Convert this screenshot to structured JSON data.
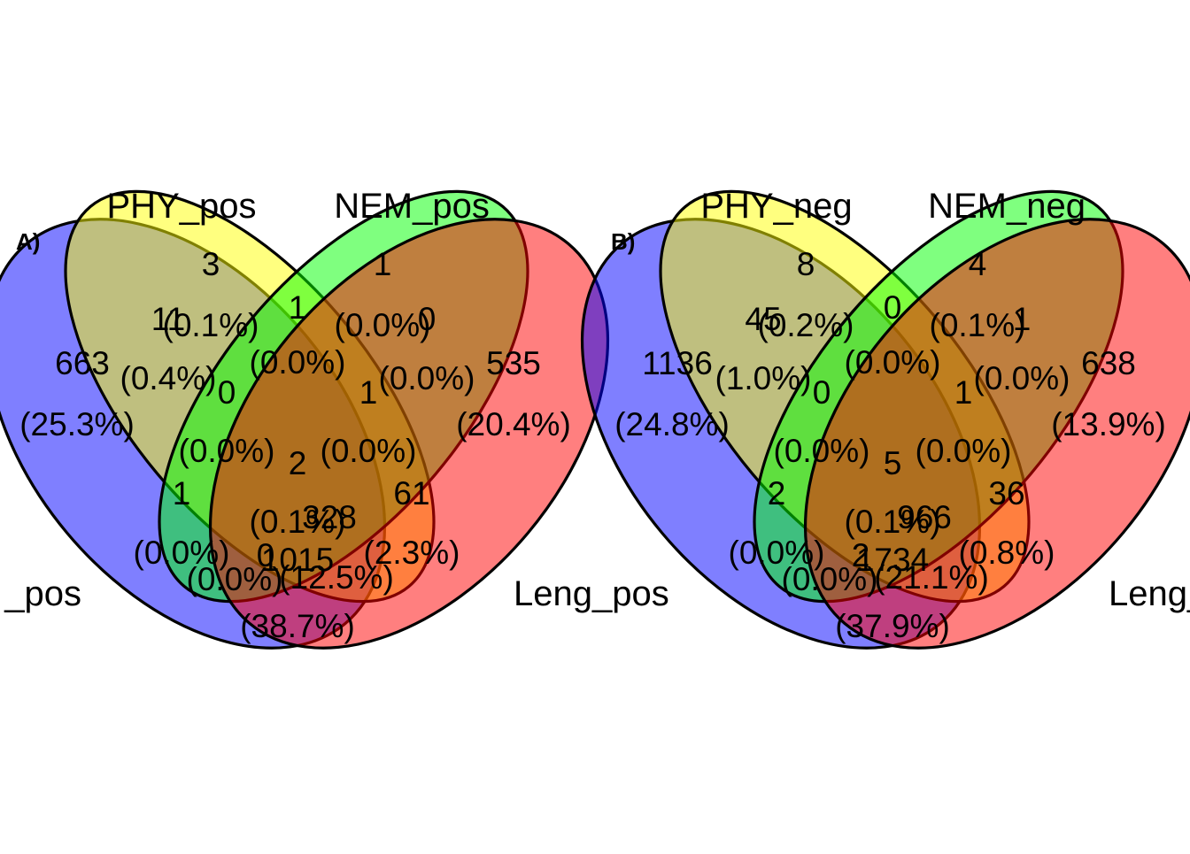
{
  "colors": {
    "blue": "#0000ff",
    "yellow": "#ffff00",
    "green": "#00ff00",
    "red": "#ff0000",
    "fill_opacity": 0.5,
    "outline": "#000000"
  },
  "panels": [
    {
      "tag": "A)",
      "sets": {
        "blue": "_pos",
        "yellow": "PHY_pos",
        "green": "NEM_pos",
        "red": "Leng_pos"
      },
      "regions": {
        "blue": {
          "count": "663",
          "pct": "(25.3%)"
        },
        "yellow": {
          "count": "3",
          "pct": "(0.1%)"
        },
        "green": {
          "count": "1",
          "pct": "(0.0%)"
        },
        "red": {
          "count": "535",
          "pct": "(20.4%)"
        },
        "blue_yellow": {
          "count": "11",
          "pct": "(0.4%)"
        },
        "yellow_green": {
          "count": "1",
          "pct": "(0.0%)"
        },
        "green_red": {
          "count": "0",
          "pct": "(0.0%)"
        },
        "blue_yellow_green": {
          "count": "0",
          "pct": "(0.0%)"
        },
        "yellow_green_red": {
          "count": "1",
          "pct": "(0.0%)"
        },
        "all": {
          "count": "2",
          "pct": "(0.1%)"
        },
        "blue_green": {
          "count": "1",
          "pct": "(0.0%)"
        },
        "yellow_red": {
          "count": "61",
          "pct": "(2.3%)"
        },
        "blue_green_red": {
          "count": "328",
          "pct": "(12.5%)"
        },
        "blue_yellow_red": {
          "count": "0",
          "pct": "(0.0%)"
        },
        "blue_red": {
          "count": "1015",
          "pct": "(38.7%)"
        }
      }
    },
    {
      "tag": "B)",
      "sets": {
        "blue": "",
        "yellow": "PHY_neg",
        "green": "NEM_neg",
        "red": "Leng_neg"
      },
      "regions": {
        "blue": {
          "count": "1136",
          "pct": "(24.8%)"
        },
        "yellow": {
          "count": "8",
          "pct": "(0.2%)"
        },
        "green": {
          "count": "4",
          "pct": "(0.1%)"
        },
        "red": {
          "count": "638",
          "pct": "(13.9%)"
        },
        "blue_yellow": {
          "count": "45",
          "pct": "(1.0%)"
        },
        "yellow_green": {
          "count": "0",
          "pct": "(0.0%)"
        },
        "green_red": {
          "count": "1",
          "pct": "(0.0%)"
        },
        "blue_yellow_green": {
          "count": "0",
          "pct": "(0.0%)"
        },
        "yellow_green_red": {
          "count": "1",
          "pct": "(0.0%)"
        },
        "all": {
          "count": "5",
          "pct": "(0.1%)"
        },
        "blue_green": {
          "count": "2",
          "pct": "(0.0%)"
        },
        "yellow_red": {
          "count": "36",
          "pct": "(0.8%)"
        },
        "blue_green_red": {
          "count": "966",
          "pct": "(21.1%)"
        },
        "blue_yellow_red": {
          "count": "2",
          "pct": "(0.0%)"
        },
        "blue_red": {
          "count": "1734",
          "pct": "(37.9%)"
        }
      }
    }
  ]
}
